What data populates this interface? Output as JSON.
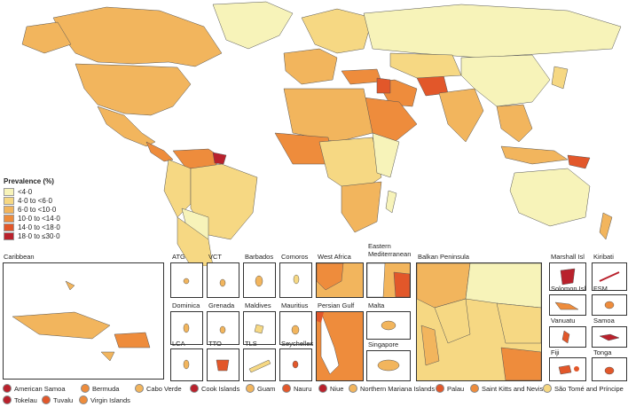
{
  "legend": {
    "title": "Prevalence (%)",
    "items": [
      {
        "label": "<4·0",
        "color": "#f7f3b9"
      },
      {
        "label": "4·0 to <6·0",
        "color": "#f6d883"
      },
      {
        "label": "6·0 to <10·0",
        "color": "#f2b55d"
      },
      {
        "label": "10·0 to <14·0",
        "color": "#ee8c3c"
      },
      {
        "label": "14·0 to <18·0",
        "color": "#e2572a"
      },
      {
        "label": "18·0 to ≤30·0",
        "color": "#b9212c"
      }
    ]
  },
  "insets": {
    "caribbean": "Caribbean",
    "atg": "ATG",
    "vct": "VCT",
    "barbados": "Barbados",
    "comoros": "Comoros",
    "west_africa": "West Africa",
    "eastern_med": "Eastern Mediterranean",
    "balkan": "Balkan Peninsula",
    "marshall": "Marshall Isl",
    "kiribati": "Kiribati",
    "dominica": "Dominica",
    "grenada": "Grenada",
    "maldives": "Maldives",
    "mauritius": "Mauritius",
    "persian_gulf": "Persian Gulf",
    "malta": "Malta",
    "solomon": "Solomon Isl",
    "fsm": "FSM",
    "lca": "LCA",
    "tto": "TTO",
    "tls": "TLS",
    "seychelles": "Seychelles",
    "singapore": "Singapore",
    "vanuatu": "Vanuatu",
    "samoa": "Samoa",
    "fiji": "Fiji",
    "tonga": "Tonga"
  },
  "key": [
    {
      "label": "American Samoa",
      "color": "#b9212c"
    },
    {
      "label": "Bermuda",
      "color": "#ee8c3c"
    },
    {
      "label": "Cabo Verde",
      "color": "#f2b55d"
    },
    {
      "label": "Cook Islands",
      "color": "#b9212c"
    },
    {
      "label": "Guam",
      "color": "#f2b55d"
    },
    {
      "label": "Nauru",
      "color": "#e2572a"
    },
    {
      "label": "Niue",
      "color": "#b9212c"
    },
    {
      "label": "Northern Mariana Islands",
      "color": "#f2b55d"
    },
    {
      "label": "Palau",
      "color": "#e2572a"
    },
    {
      "label": "Saint Kitts and Nevis",
      "color": "#ee8c3c"
    },
    {
      "label": "São Tomé and Príncipe",
      "color": "#f6d883"
    },
    {
      "label": "Tokelau",
      "color": "#b9212c"
    },
    {
      "label": "Tuvalu",
      "color": "#e2572a"
    },
    {
      "label": "Virgin Islands",
      "color": "#ee8c3c"
    }
  ]
}
